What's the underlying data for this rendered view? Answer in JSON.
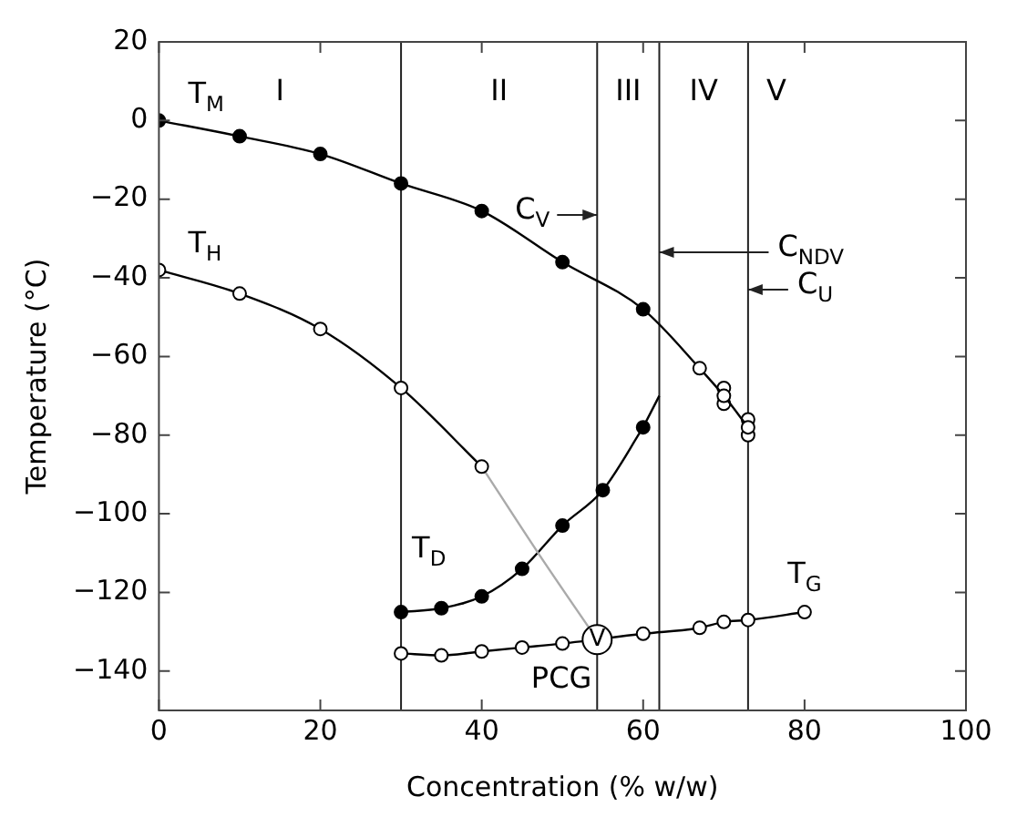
{
  "chart_data": {
    "type": "line",
    "xlabel": "Concentration (% w/w)",
    "ylabel": "Temperature (°C)",
    "xlim": [
      0,
      100
    ],
    "xticks": [
      0,
      20,
      40,
      60,
      80,
      100
    ],
    "ylim": [
      -150,
      20
    ],
    "yticks": [
      20,
      0,
      -20,
      -40,
      -60,
      -80,
      -100,
      -120,
      -140
    ],
    "grid": false,
    "legend": false,
    "marker": "circle",
    "line_style": "solid",
    "series": [
      {
        "type": "line",
        "name": "T$_{M}$",
        "color": "#000000",
        "x": [
          0,
          10,
          20,
          30,
          40,
          50,
          60,
          67,
          70,
          73
        ],
        "values": [
          0,
          -4,
          -8.5,
          -16,
          -23,
          -36,
          -48,
          -63,
          -70,
          -78
        ],
        "colors": [
          "#000000",
          "#000000",
          "#000000",
          "#000000",
          "#000000",
          "#000000",
          "#000000",
          "#ffffff",
          "#ffffff",
          "#ffffff"
        ]
      },
      {
        "type": "scatter",
        "color": "#000000",
        "x": [
          70,
          70,
          73,
          73
        ],
        "values": [
          -68,
          -72,
          -76,
          -80
        ],
        "colors": [
          "#ffffff",
          "#ffffff",
          "#ffffff",
          "#ffffff"
        ]
      },
      {
        "type": "line",
        "name": "T$_{H}$",
        "color": "#000000",
        "x": [
          0,
          10,
          20,
          30,
          40
        ],
        "values": [
          -38,
          -44,
          -53,
          -68,
          -88
        ],
        "colors": [
          "#ffffff",
          "#ffffff",
          "#ffffff",
          "#ffffff",
          "#ffffff"
        ]
      },
      {
        "type": "line",
        "color": "#aaaaaa",
        "marker": "none",
        "x": [
          40,
          47,
          54.3
        ],
        "values": [
          -88,
          -110,
          -132
        ]
      },
      {
        "type": "line",
        "name": "T$_{D}$",
        "color": "#000000",
        "x": [
          30,
          35,
          40,
          45,
          50,
          55,
          60
        ],
        "values": [
          -125,
          -124,
          -121,
          -114,
          -103,
          -94,
          -78
        ],
        "colors": [
          "#000000",
          "#000000",
          "#000000",
          "#000000",
          "#000000",
          "#000000",
          "#000000"
        ]
      },
      {
        "type": "line",
        "color": "#000000",
        "marker": "none",
        "x": [
          60,
          62
        ],
        "values": [
          -78,
          -70
        ]
      },
      {
        "type": "line",
        "name": "T$_{G}$",
        "color": "#000000",
        "x": [
          30,
          35,
          40,
          45,
          50,
          60,
          67,
          70,
          73,
          80
        ],
        "values": [
          -135.5,
          -136,
          -135,
          -134,
          -133,
          -130.5,
          -129,
          -127.5,
          -127,
          -125
        ],
        "colors": [
          "#ffffff",
          "#ffffff",
          "#ffffff",
          "#ffffff",
          "#ffffff",
          "#ffffff",
          "#ffffff",
          "#ffffff",
          "#ffffff",
          "#ffffff"
        ]
      },
      {
        "type": "bubble",
        "name": "V",
        "color": "#000000",
        "x": [
          54.3
        ],
        "values": [
          -132
        ],
        "sizes": [
          1
        ],
        "colors": [
          "#ffffff"
        ]
      }
    ],
    "ref_lines": [
      {
        "axis": "x",
        "value": 30
      },
      {
        "axis": "x",
        "value": 54.3,
        "label": "C$_{V}$"
      },
      {
        "axis": "x",
        "value": 62,
        "label": "C$_{NDV}$"
      },
      {
        "axis": "x",
        "value": 73,
        "label": "C$_{U}$"
      }
    ],
    "annotations": [
      "I",
      "II",
      "III",
      "IV",
      "V",
      {
        "text": "PCG",
        "x": 54.3,
        "y": -132
      }
    ]
  }
}
